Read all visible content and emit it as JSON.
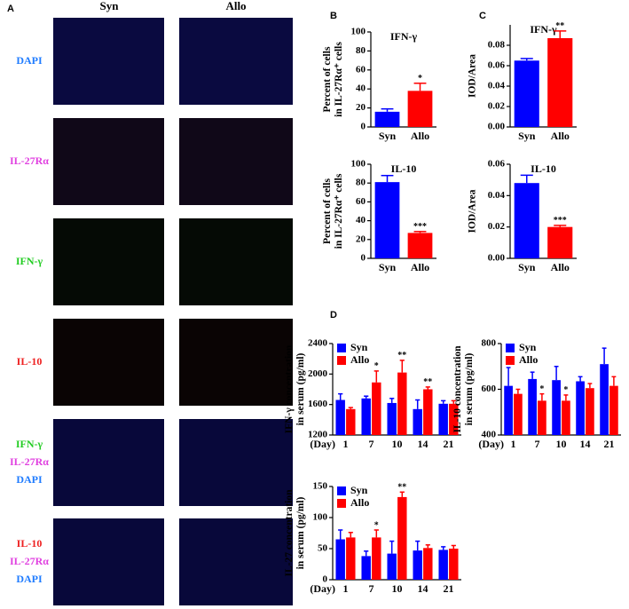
{
  "panel_a": {
    "label": "A",
    "columns": [
      "Syn",
      "Allo"
    ],
    "rows": [
      [
        {
          "text": "DAPI",
          "color": "#1e7bff"
        }
      ],
      [
        {
          "text": "IL-27Rα",
          "color": "#e040e0"
        }
      ],
      [
        {
          "text": "IFN-γ",
          "color": "#22cc22"
        }
      ],
      [
        {
          "text": "IL-10",
          "color": "#ee2020"
        }
      ],
      [
        {
          "text": "IFN-γ",
          "color": "#22cc22"
        },
        {
          "text": "IL-27Rα",
          "color": "#e040e0"
        },
        {
          "text": "DAPI",
          "color": "#1e7bff"
        }
      ],
      [
        {
          "text": "IL-10",
          "color": "#ee2020"
        },
        {
          "text": "IL-27Rα",
          "color": "#e040e0"
        },
        {
          "text": "DAPI",
          "color": "#1e7bff"
        }
      ]
    ]
  },
  "chart_data": [
    {
      "type": "bar",
      "panel": "B",
      "title": "IFN-γ",
      "ylabel": [
        "Percent of cells",
        "in IL-27Rα⁺ cells"
      ],
      "categories": [
        "Syn",
        "Allo"
      ],
      "colors": [
        "#0000ff",
        "#ff0000"
      ],
      "values": [
        16,
        38
      ],
      "errors": [
        3,
        8
      ],
      "significance": [
        null,
        "*"
      ],
      "ylim": [
        0,
        100
      ],
      "yticks": [
        0,
        20,
        40,
        60,
        80,
        100
      ]
    },
    {
      "type": "bar",
      "title": "IL-10",
      "ylabel": [
        "Percent of cells",
        "in IL-27Rα⁺ cells"
      ],
      "categories": [
        "Syn",
        "Allo"
      ],
      "colors": [
        "#0000ff",
        "#ff0000"
      ],
      "values": [
        81,
        27
      ],
      "errors": [
        7,
        1.5
      ],
      "significance": [
        null,
        "***"
      ],
      "ylim": [
        0,
        100
      ],
      "yticks": [
        0,
        20,
        40,
        60,
        80,
        100
      ]
    },
    {
      "type": "bar",
      "panel": "C",
      "title": "IFN-γ",
      "ylabel": [
        "IOD/Area"
      ],
      "categories": [
        "Syn",
        "Allo"
      ],
      "colors": [
        "#0000ff",
        "#ff0000"
      ],
      "values": [
        0.065,
        0.087
      ],
      "errors": [
        0.002,
        0.007
      ],
      "significance": [
        null,
        "**"
      ],
      "ylim": [
        0,
        0.1
      ],
      "yticks": [
        {
          "value": 0,
          "label": "0.00"
        },
        {
          "value": 0.02,
          "label": "0.02"
        },
        {
          "value": 0.04,
          "label": "0.04"
        },
        {
          "value": 0.06,
          "label": "0.06"
        },
        {
          "value": 0.08,
          "label": "0.08"
        }
      ]
    },
    {
      "type": "bar",
      "title": "IL-10",
      "ylabel": [
        "IOD/Area"
      ],
      "categories": [
        "Syn",
        "Allo"
      ],
      "colors": [
        "#0000ff",
        "#ff0000"
      ],
      "values": [
        0.048,
        0.02
      ],
      "errors": [
        0.005,
        0.001
      ],
      "significance": [
        null,
        "***"
      ],
      "ylim": [
        0,
        0.06
      ],
      "yticks": [
        {
          "value": 0,
          "label": "0.00"
        },
        {
          "value": 0.02,
          "label": "0.02"
        },
        {
          "value": 0.04,
          "label": "0.04"
        },
        {
          "value": 0.06,
          "label": "0.06"
        }
      ]
    },
    {
      "type": "bar",
      "panel": "D",
      "ylabel": [
        "IFN-γ concentration",
        "in serum (pg/ml)"
      ],
      "xlabel": "(Day)",
      "categories": [
        "1",
        "7",
        "10",
        "14",
        "21"
      ],
      "series": [
        {
          "name": "Syn",
          "color": "#0000ff",
          "values": [
            1660,
            1680,
            1620,
            1540,
            1610
          ],
          "errors": [
            80,
            30,
            60,
            120,
            40
          ],
          "significance": [
            null,
            null,
            null,
            null,
            null
          ]
        },
        {
          "name": "Allo",
          "color": "#ff0000",
          "values": [
            1540,
            1890,
            2020,
            1800,
            1610
          ],
          "errors": [
            20,
            150,
            160,
            30,
            40
          ],
          "significance": [
            null,
            "*",
            "**",
            "**",
            null
          ]
        }
      ],
      "ylim": [
        1200,
        2400
      ],
      "yticks": [
        1200,
        1600,
        2000,
        2400
      ]
    },
    {
      "type": "bar",
      "ylabel": [
        "IL-10 concentration",
        "in serum (pg/ml)"
      ],
      "xlabel": "(Day)",
      "categories": [
        "1",
        "7",
        "10",
        "14",
        "21"
      ],
      "series": [
        {
          "name": "Syn",
          "color": "#0000ff",
          "values": [
            615,
            645,
            640,
            635,
            710
          ],
          "errors": [
            80,
            30,
            60,
            20,
            70
          ],
          "significance": [
            null,
            null,
            null,
            null,
            null
          ]
        },
        {
          "name": "Allo",
          "color": "#ff0000",
          "values": [
            580,
            550,
            550,
            605,
            615
          ],
          "errors": [
            20,
            30,
            25,
            20,
            40
          ],
          "significance": [
            null,
            "*",
            "*",
            null,
            null
          ]
        }
      ],
      "ylim": [
        400,
        800
      ],
      "yticks": [
        400,
        600,
        800
      ]
    },
    {
      "type": "bar",
      "ylabel": [
        "IL-27 concentration",
        "in serum (pg/ml)"
      ],
      "xlabel": "(Day)",
      "categories": [
        "1",
        "7",
        "10",
        "14",
        "21"
      ],
      "series": [
        {
          "name": "Syn",
          "color": "#0000ff",
          "values": [
            65,
            38,
            42,
            47,
            48
          ],
          "errors": [
            15,
            8,
            20,
            15,
            5
          ],
          "significance": [
            null,
            null,
            null,
            null,
            null
          ]
        },
        {
          "name": "Allo",
          "color": "#ff0000",
          "values": [
            68,
            68,
            133,
            51,
            50
          ],
          "errors": [
            8,
            12,
            8,
            5,
            5
          ],
          "significance": [
            null,
            "*",
            "**",
            null,
            null
          ]
        }
      ],
      "ylim": [
        0,
        150
      ],
      "yticks": [
        0,
        50,
        100,
        150
      ]
    }
  ]
}
